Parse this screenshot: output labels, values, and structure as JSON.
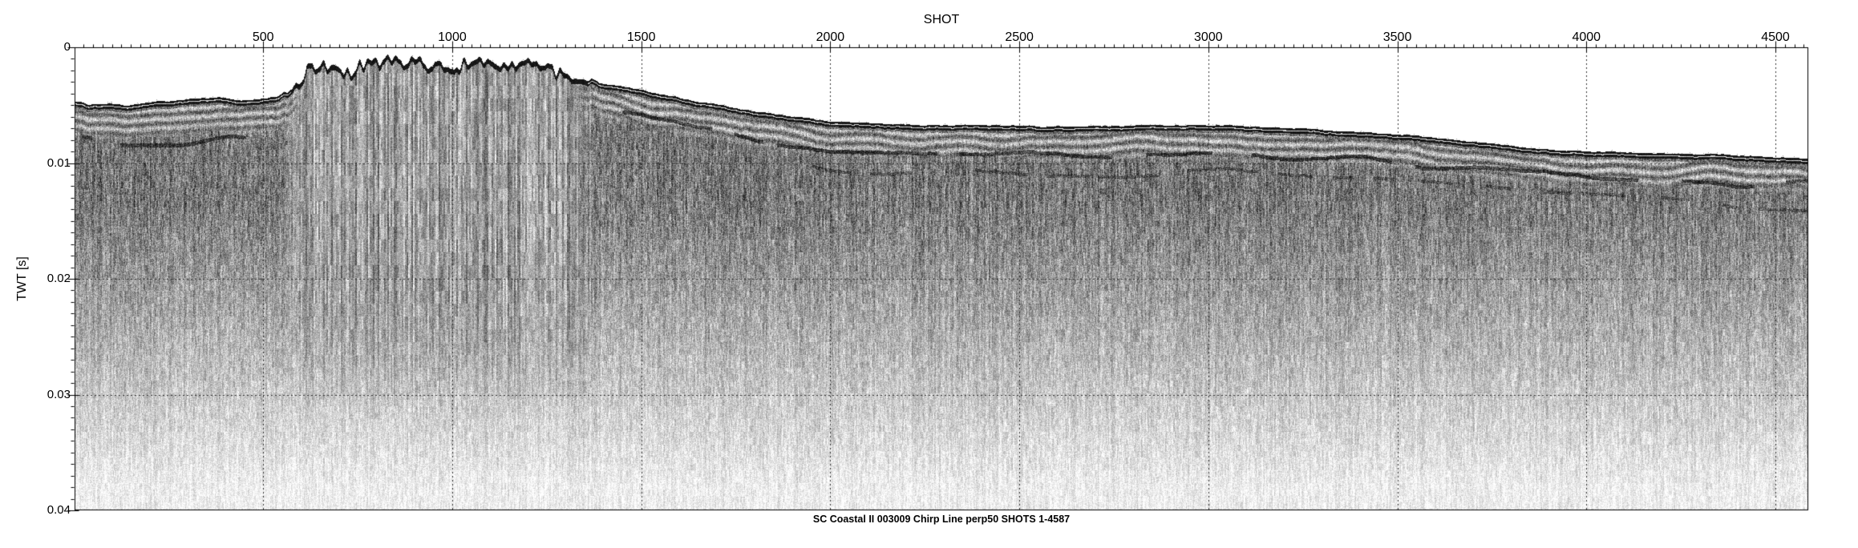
{
  "figure": {
    "background_color": "#ffffff",
    "text_color": "#000000"
  },
  "chart_data": {
    "type": "heatmap",
    "subtype": "seismic-reflection-profile",
    "title": "SHOT",
    "xlabel": "SHOT",
    "ylabel": "TWT [s]",
    "caption": "SC Coastal II 003009 Chirp Line perp50 SHOTS 1-4587",
    "colormap": "grayscale",
    "legend": "none",
    "x_axis": {
      "label": "SHOT",
      "min": 1,
      "max": 4587,
      "major_ticks": [
        500,
        1000,
        1500,
        2000,
        2500,
        3000,
        3500,
        4000,
        4500
      ],
      "minor_tick_step": 25,
      "gridlines": "dotted-at-major-ticks"
    },
    "y_axis": {
      "label": "TWT [s]",
      "min": 0,
      "max": 0.04,
      "major_ticks": [
        0,
        0.01,
        0.02,
        0.03,
        0.04
      ],
      "tick_labels": [
        "0",
        "0.01",
        "0.02",
        "0.03",
        "0.04"
      ],
      "minor_tick_step": 0.001,
      "gridlines_at": [
        0.01,
        0.02,
        0.03
      ]
    },
    "seafloor_profile_twt_s": [
      [
        1,
        0.0046
      ],
      [
        40,
        0.005
      ],
      [
        90,
        0.0048
      ],
      [
        140,
        0.005
      ],
      [
        200,
        0.0047
      ],
      [
        260,
        0.0046
      ],
      [
        320,
        0.0044
      ],
      [
        380,
        0.0043
      ],
      [
        440,
        0.0046
      ],
      [
        500,
        0.0044
      ],
      [
        540,
        0.0042
      ],
      [
        575,
        0.0036
      ],
      [
        600,
        0.0027
      ],
      [
        615,
        0.002
      ],
      [
        630,
        0.0016
      ],
      [
        655,
        0.0013
      ],
      [
        680,
        0.0013
      ],
      [
        705,
        0.0015
      ],
      [
        730,
        0.0019
      ],
      [
        755,
        0.0016
      ],
      [
        775,
        0.0012
      ],
      [
        800,
        0.0011
      ],
      [
        830,
        0.0009
      ],
      [
        855,
        0.0012
      ],
      [
        880,
        0.0011
      ],
      [
        905,
        0.0008
      ],
      [
        930,
        0.001
      ],
      [
        955,
        0.0014
      ],
      [
        975,
        0.0018
      ],
      [
        995,
        0.0023
      ],
      [
        1005,
        0.0024
      ],
      [
        1020,
        0.0016
      ],
      [
        1035,
        0.0012
      ],
      [
        1060,
        0.0011
      ],
      [
        1090,
        0.0012
      ],
      [
        1120,
        0.0012
      ],
      [
        1150,
        0.0013
      ],
      [
        1180,
        0.0014
      ],
      [
        1210,
        0.0015
      ],
      [
        1240,
        0.0016
      ],
      [
        1262,
        0.0019
      ],
      [
        1280,
        0.0022
      ],
      [
        1300,
        0.0023
      ],
      [
        1330,
        0.0026
      ],
      [
        1360,
        0.0028
      ],
      [
        1400,
        0.0031
      ],
      [
        1440,
        0.0033
      ],
      [
        1480,
        0.0035
      ],
      [
        1530,
        0.0039
      ],
      [
        1580,
        0.0042
      ],
      [
        1640,
        0.0046
      ],
      [
        1700,
        0.0049
      ],
      [
        1760,
        0.0053
      ],
      [
        1820,
        0.0056
      ],
      [
        1880,
        0.0059
      ],
      [
        1940,
        0.0061
      ],
      [
        2000,
        0.0064
      ],
      [
        2080,
        0.0065
      ],
      [
        2160,
        0.0066
      ],
      [
        2250,
        0.0067
      ],
      [
        2350,
        0.0067
      ],
      [
        2450,
        0.0067
      ],
      [
        2550,
        0.0068
      ],
      [
        2650,
        0.0068
      ],
      [
        2750,
        0.0068
      ],
      [
        2850,
        0.0067
      ],
      [
        2950,
        0.0067
      ],
      [
        3050,
        0.0067
      ],
      [
        3150,
        0.0069
      ],
      [
        3250,
        0.007
      ],
      [
        3350,
        0.0072
      ],
      [
        3450,
        0.0074
      ],
      [
        3550,
        0.0076
      ],
      [
        3650,
        0.008
      ],
      [
        3750,
        0.0083
      ],
      [
        3850,
        0.0087
      ],
      [
        3950,
        0.0089
      ],
      [
        4050,
        0.009
      ],
      [
        4150,
        0.0091
      ],
      [
        4250,
        0.0092
      ],
      [
        4350,
        0.0092
      ],
      [
        4450,
        0.0094
      ],
      [
        4520,
        0.0095
      ],
      [
        4587,
        0.0096
      ]
    ],
    "features": {
      "water_column": "blank white above seafloor reflector",
      "seafloor": "thick black reflector band with thin white internal line",
      "shoal": {
        "shots": [
          580,
          1350
        ],
        "description": "rough rocky shoal, crest near 0.001 s TWT, chaotic dark vertical-streak scattering beneath, fading by ~0.03 s"
      },
      "sub_bottom_reflector_right": {
        "shots": [
          1430,
          4587
        ],
        "offset_below_seafloor_s": 0.0024,
        "description": "dark discontinuous wavy reflector parallel to seafloor"
      },
      "sub_bottom_reflector_right_deep": {
        "shots": [
          1850,
          4587
        ],
        "offset_below_seafloor_s": 0.004
      },
      "left_reflector_twt_s": 0.008,
      "fade_below_twt_s": 0.026,
      "texture": "fine grayscale speckle with vertical grain, lightening with depth"
    }
  }
}
